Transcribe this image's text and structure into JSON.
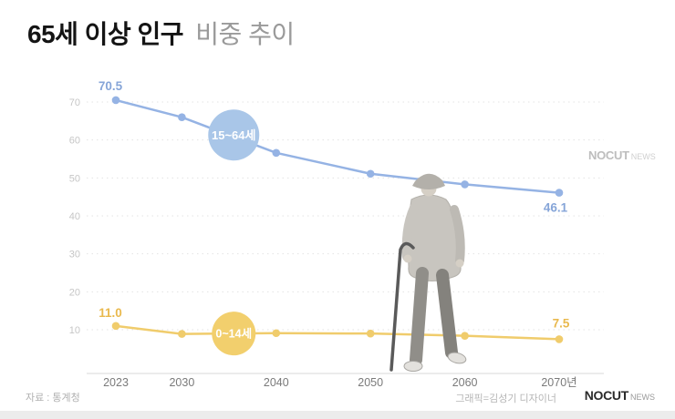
{
  "header": {
    "title_bold": "65세 이상 인구",
    "title_light": "비중 추이"
  },
  "footer": {
    "source": "자료 : 통계청",
    "credit": "그래픽=김성기 디자이너"
  },
  "logo": {
    "top": {
      "main": "NOCUT",
      "sub": "NEWS"
    },
    "bottom": {
      "main": "NOCUT",
      "sub": "NEWS"
    }
  },
  "chart_data": {
    "type": "line",
    "title": "65세 이상 인구 비중 추이",
    "x": [
      2023,
      2030,
      2040,
      2050,
      2060,
      2070
    ],
    "x_tick_labels": [
      "2023",
      "2030",
      "2040",
      "2050",
      "2060",
      "2070년"
    ],
    "yticks": [
      10,
      20,
      30,
      40,
      50,
      60,
      70
    ],
    "ylim": [
      10,
      70
    ],
    "grid": "dashed-horizontal",
    "legend_position": "on-line-badges",
    "series": [
      {
        "name": "15~64세",
        "values": [
          70.5,
          66.0,
          56.6,
          51.1,
          48.3,
          46.1
        ],
        "color": "#95b3e4",
        "label_color": "#86a5d8",
        "badge": {
          "year": 2035.5,
          "value": 61.3,
          "r": 28,
          "fill": "#a9c6e8",
          "font_size": 13
        },
        "end_labels": {
          "first": "70.5",
          "last": "46.1"
        },
        "first_offset": [
          -6,
          -11
        ],
        "last_offset": [
          -4,
          21
        ]
      },
      {
        "name": "0~14세",
        "values": [
          11.0,
          8.9,
          9.1,
          9.0,
          8.4,
          7.5
        ],
        "color": "#f0cc6c",
        "label_color": "#e9b94e",
        "badge": {
          "year": 2035.5,
          "value": 9.0,
          "r": 24,
          "fill": "#f2cf6d",
          "font_size": 12.5
        },
        "end_labels": {
          "first": "11.0",
          "last": "7.5"
        },
        "first_offset": [
          -6,
          -10
        ],
        "last_offset": [
          2,
          -13
        ]
      }
    ]
  }
}
